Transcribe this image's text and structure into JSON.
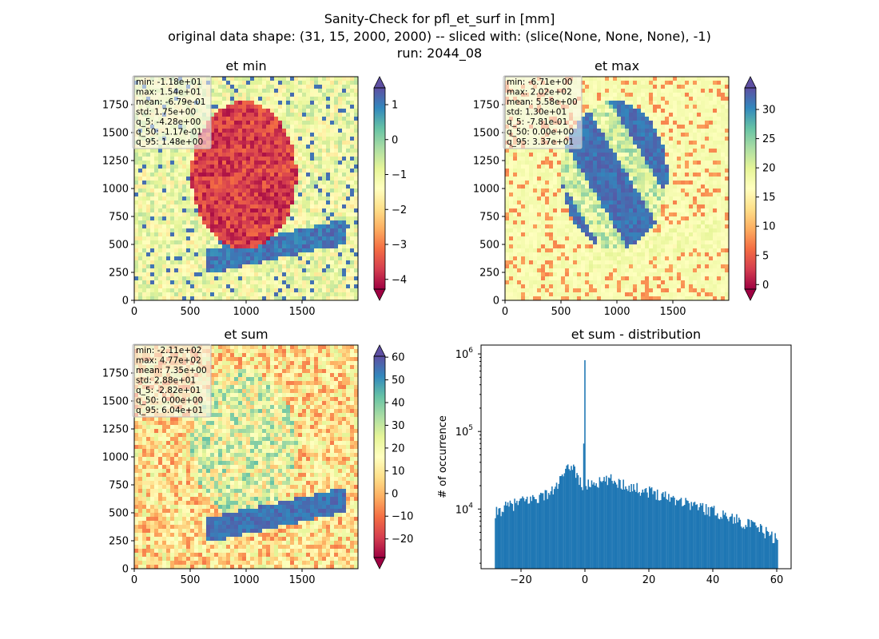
{
  "figure": {
    "suptitle_lines": [
      "Sanity-Check for pfl_et_surf in [mm]",
      "original data shape: (31, 15, 2000, 2000) -- sliced with: (slice(None, None, None), -1)",
      "run: 2044_08"
    ]
  },
  "colormap": {
    "name": "Spectral",
    "stops": [
      "#9e0142",
      "#d53e4f",
      "#f46d43",
      "#fdae61",
      "#fee08b",
      "#ffffbf",
      "#e6f598",
      "#abdda4",
      "#66c2a5",
      "#3288bd",
      "#5e4fa2"
    ]
  },
  "chart_data": [
    {
      "type": "heatmap",
      "title": "et min",
      "xlim": [
        0,
        2000
      ],
      "ylim": [
        0,
        2000
      ],
      "xticks": [
        0,
        500,
        1000,
        1500
      ],
      "yticks": [
        0,
        250,
        500,
        750,
        1000,
        1250,
        1500,
        1750
      ],
      "colorbar": {
        "vmin": -4.28,
        "vmax": 1.48,
        "ticks": [
          1,
          0,
          -1,
          -2,
          -3,
          -4
        ],
        "extend": "both"
      },
      "stats": [
        "min: -1.18e+01",
        "max: 1.54e+01",
        "mean: -6.79e-01",
        "std: 1.75e+00",
        "q_5: -4.28e+00",
        "q_50: -1.17e-01",
        "q_95: 1.48e+00"
      ]
    },
    {
      "type": "heatmap",
      "title": "et max",
      "xlim": [
        0,
        2000
      ],
      "ylim": [
        0,
        2000
      ],
      "xticks": [
        0,
        500,
        1000,
        1500
      ],
      "yticks": [
        0,
        250,
        500,
        750,
        1000,
        1250,
        1500,
        1750
      ],
      "colorbar": {
        "vmin": -0.781,
        "vmax": 33.7,
        "ticks": [
          30,
          25,
          20,
          15,
          10,
          5,
          0
        ],
        "extend": "both"
      },
      "stats": [
        "min: -6.71e+00",
        "max: 2.02e+02",
        "mean: 5.58e+00",
        "std: 1.30e+01",
        "q_5: -7.81e-01",
        "q_50: 0.00e+00",
        "q_95: 3.37e+01"
      ]
    },
    {
      "type": "heatmap",
      "title": "et sum",
      "xlim": [
        0,
        2000
      ],
      "ylim": [
        0,
        2000
      ],
      "xticks": [
        0,
        500,
        1000,
        1500
      ],
      "yticks": [
        0,
        250,
        500,
        750,
        1000,
        1250,
        1500,
        1750
      ],
      "colorbar": {
        "vmin": -28.2,
        "vmax": 60.4,
        "ticks": [
          60,
          50,
          40,
          30,
          20,
          10,
          0,
          -10,
          -20
        ],
        "extend": "both"
      },
      "stats": [
        "min: -2.11e+02",
        "max: 4.77e+02",
        "mean: 7.35e+00",
        "std: 2.88e+01",
        "q_5: -2.82e+01",
        "q_50: 0.00e+00",
        "q_95: 6.04e+01"
      ]
    },
    {
      "type": "bar",
      "title": "et sum - distribution",
      "ylabel": "# of occurrence",
      "yscale": "log",
      "xlim": [
        -32.5,
        64.5
      ],
      "ylim": [
        1700,
        1300000
      ],
      "xticks": [
        -20,
        0,
        20,
        40,
        60
      ],
      "yticks": [
        {
          "value": 10000,
          "base": "10",
          "exp": "4"
        },
        {
          "value": 100000,
          "base": "10",
          "exp": "5"
        },
        {
          "value": 1000000,
          "base": "10",
          "exp": "6"
        }
      ],
      "color": "#1f77b4",
      "histogram": {
        "range": [
          -28.2,
          60.4
        ],
        "profile": [
          [
            -28.2,
            5500
          ],
          [
            -27.8,
            9000
          ],
          [
            -25,
            10500
          ],
          [
            -20,
            12500
          ],
          [
            -15,
            14000
          ],
          [
            -10,
            17000
          ],
          [
            -6,
            30000
          ],
          [
            -4,
            38000
          ],
          [
            -2,
            25000
          ],
          [
            -0.6,
            19000
          ],
          [
            0,
            830000
          ],
          [
            0.3,
            20000
          ],
          [
            2,
            22000
          ],
          [
            5,
            22000
          ],
          [
            8,
            24000
          ],
          [
            12,
            21000
          ],
          [
            16,
            18500
          ],
          [
            20,
            17000
          ],
          [
            25,
            15000
          ],
          [
            30,
            13000
          ],
          [
            35,
            11000
          ],
          [
            40,
            9500
          ],
          [
            45,
            8000
          ],
          [
            50,
            6700
          ],
          [
            55,
            5500
          ],
          [
            60.4,
            4000
          ]
        ]
      }
    }
  ]
}
